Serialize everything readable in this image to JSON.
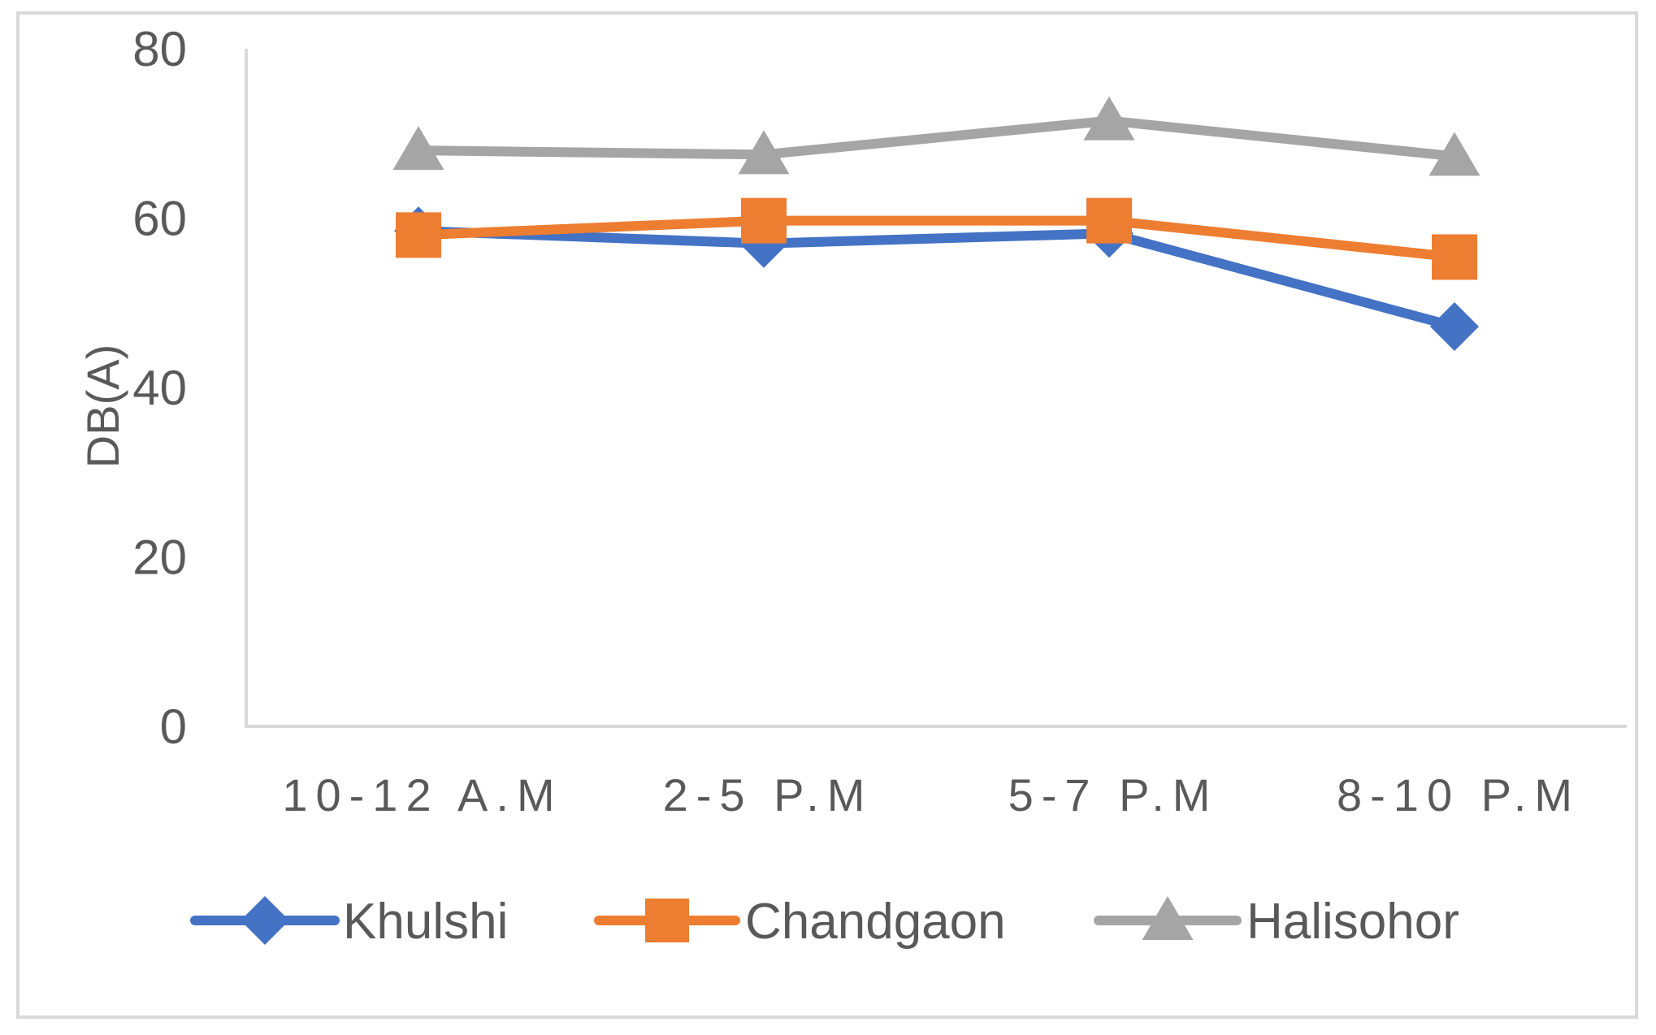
{
  "chart_data": {
    "type": "line",
    "title": "",
    "xlabel": "",
    "ylabel": "DB(A)",
    "categories": [
      "10-12 A.M",
      "2-5 P.M",
      "5-7 P.M",
      "8-10 P.M"
    ],
    "ylim": [
      0,
      80
    ],
    "yticks": [
      "0",
      "20",
      "40",
      "60",
      "80"
    ],
    "grid": false,
    "legend_position": "bottom",
    "series": [
      {
        "name": "Khulshi",
        "values": [
          58.5,
          57.0,
          58.2,
          47.2
        ],
        "color": "#4472C4",
        "marker": "diamond"
      },
      {
        "name": "Chandgaon",
        "values": [
          58.0,
          59.7,
          59.7,
          55.4
        ],
        "color": "#ED7D31",
        "marker": "square"
      },
      {
        "name": "Halisohor",
        "values": [
          68.0,
          67.5,
          71.5,
          67.3
        ],
        "color": "#A5A5A5",
        "marker": "triangle"
      }
    ]
  }
}
